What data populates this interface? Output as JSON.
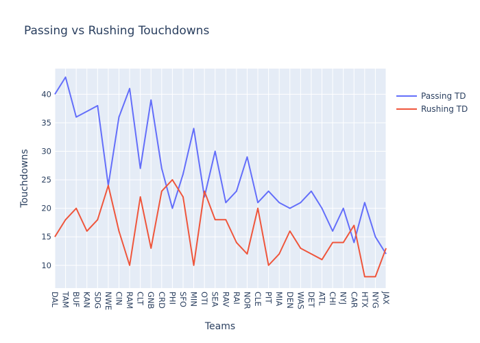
{
  "chart_data": {
    "type": "line",
    "title": "Passing vs Rushing Touchdowns",
    "xlabel": "Teams",
    "ylabel": "Touchdowns",
    "categories": [
      "DAL",
      "TAM",
      "BUF",
      "KAN",
      "SDG",
      "NWE",
      "CIN",
      "RAM",
      "CLT",
      "GNB",
      "CRD",
      "PHI",
      "SFO",
      "MIN",
      "OTI",
      "SEA",
      "RAV",
      "RAI",
      "NOR",
      "CLE",
      "PIT",
      "MIA",
      "DEN",
      "WAS",
      "DET",
      "ATL",
      "CHI",
      "NYJ",
      "CAR",
      "HTX",
      "NYG",
      "JAX"
    ],
    "yticks": [
      10,
      15,
      20,
      25,
      30,
      35,
      40
    ],
    "ylim": [
      6,
      44.5
    ],
    "grid": true,
    "legend_position": "top-right",
    "series": [
      {
        "name": "Passing TD",
        "color": "#636efa",
        "values": [
          40,
          43,
          36,
          37,
          38,
          24,
          36,
          41,
          27,
          39,
          27,
          20,
          26,
          34,
          22,
          30,
          21,
          23,
          29,
          21,
          23,
          21,
          20,
          21,
          23,
          20,
          16,
          20,
          14,
          21,
          15,
          12
        ]
      },
      {
        "name": "Rushing TD",
        "color": "#ef553b",
        "values": [
          15,
          18,
          20,
          16,
          18,
          24,
          16,
          10,
          22,
          13,
          23,
          25,
          22,
          10,
          23,
          18,
          18,
          14,
          12,
          20,
          10,
          12,
          16,
          13,
          12,
          11,
          14,
          14,
          17,
          8,
          8,
          13
        ]
      }
    ]
  }
}
